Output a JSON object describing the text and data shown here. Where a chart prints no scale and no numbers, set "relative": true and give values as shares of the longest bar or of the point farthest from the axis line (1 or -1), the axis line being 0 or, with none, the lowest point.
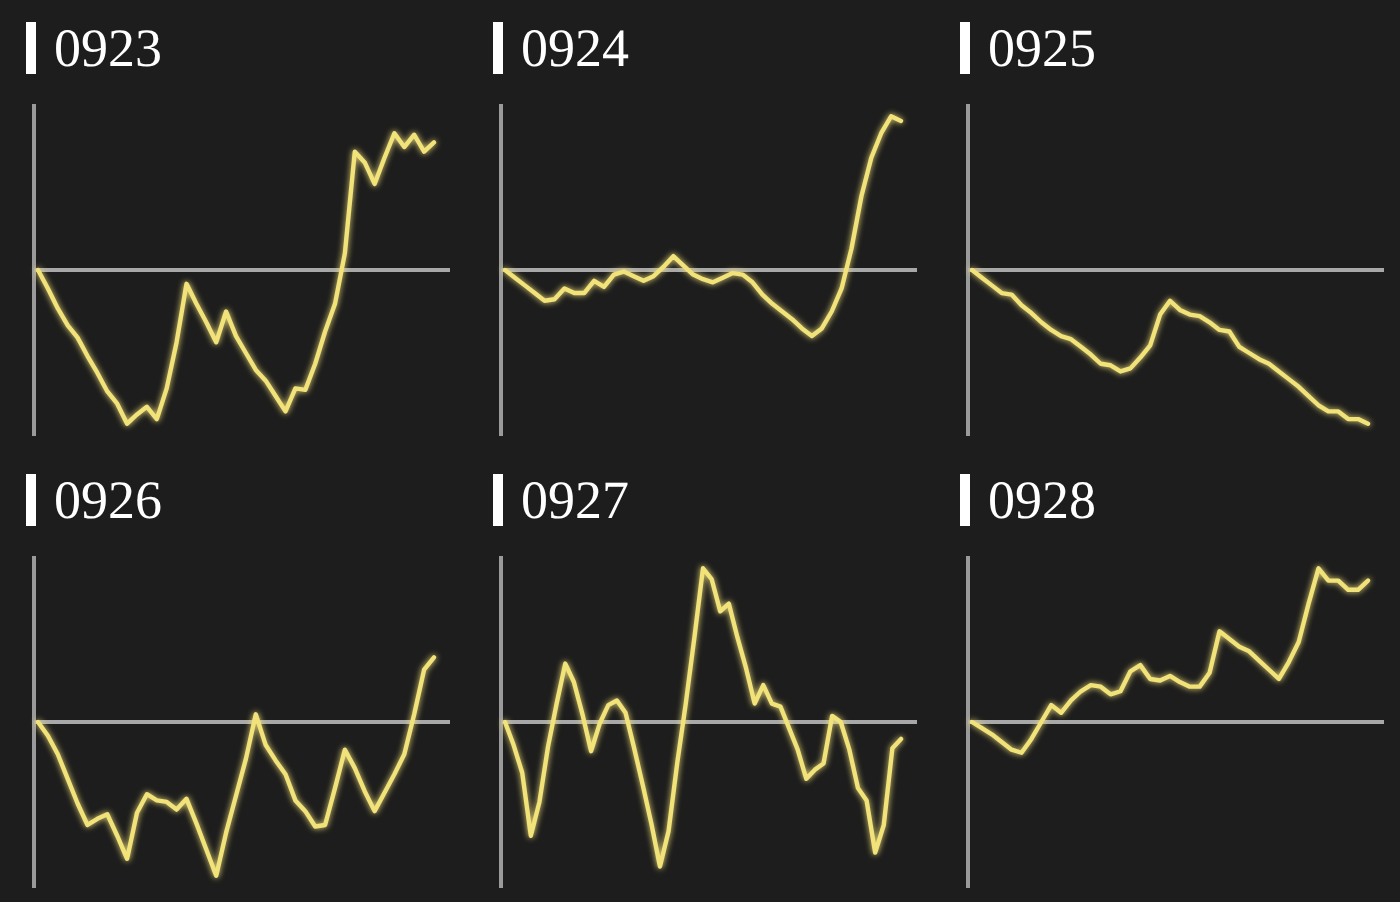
{
  "chart_data": [
    {
      "type": "line",
      "title": "0923",
      "relative": true,
      "color": "#f2e27a",
      "categories": [
        null,
        null,
        null,
        null,
        null,
        null,
        null,
        null,
        null,
        null,
        null,
        null,
        null,
        null,
        null,
        null,
        null,
        null,
        null,
        null,
        null,
        null,
        null,
        null,
        null,
        null,
        null,
        null,
        null,
        null,
        null,
        null,
        null,
        null,
        null,
        null,
        null,
        null,
        null,
        null,
        null
      ],
      "values": [
        0,
        -0.12,
        -0.25,
        -0.36,
        -0.44,
        -0.56,
        -0.67,
        -0.79,
        -0.87,
        -1.0,
        -0.94,
        -0.89,
        -0.97,
        -0.77,
        -0.47,
        -0.09,
        -0.22,
        -0.34,
        -0.47,
        -0.27,
        -0.43,
        -0.54,
        -0.65,
        -0.72,
        -0.82,
        -0.92,
        -0.77,
        -0.78,
        -0.61,
        -0.4,
        -0.22,
        0.11,
        0.77,
        0.7,
        0.56,
        0.73,
        0.89,
        0.8,
        0.88,
        0.77,
        0.83
      ]
    },
    {
      "type": "line",
      "title": "0924",
      "relative": true,
      "color": "#f2e27a",
      "categories": [
        null,
        null,
        null,
        null,
        null,
        null,
        null,
        null,
        null,
        null,
        null,
        null,
        null,
        null,
        null,
        null,
        null,
        null,
        null,
        null,
        null,
        null,
        null,
        null,
        null,
        null,
        null,
        null,
        null,
        null,
        null,
        null,
        null,
        null,
        null,
        null,
        null,
        null,
        null,
        null,
        null
      ],
      "values": [
        0,
        -0.05,
        -0.1,
        -0.15,
        -0.2,
        -0.19,
        -0.12,
        -0.15,
        -0.15,
        -0.07,
        -0.11,
        -0.03,
        -0.01,
        -0.04,
        -0.07,
        -0.04,
        0.02,
        0.09,
        0.03,
        -0.03,
        -0.06,
        -0.08,
        -0.05,
        -0.02,
        -0.03,
        -0.08,
        -0.16,
        -0.22,
        -0.27,
        -0.32,
        -0.38,
        -0.43,
        -0.38,
        -0.27,
        -0.12,
        0.14,
        0.48,
        0.73,
        0.89,
        1.0,
        0.97
      ]
    },
    {
      "type": "line",
      "title": "0925",
      "relative": true,
      "color": "#f2e27a",
      "categories": [
        null,
        null,
        null,
        null,
        null,
        null,
        null,
        null,
        null,
        null,
        null,
        null,
        null,
        null,
        null,
        null,
        null,
        null,
        null,
        null,
        null,
        null,
        null,
        null,
        null,
        null,
        null,
        null,
        null,
        null,
        null,
        null,
        null,
        null,
        null,
        null,
        null,
        null,
        null,
        null,
        null
      ],
      "values": [
        0,
        -0.05,
        -0.1,
        -0.15,
        -0.16,
        -0.23,
        -0.28,
        -0.34,
        -0.39,
        -0.43,
        -0.45,
        -0.5,
        -0.55,
        -0.61,
        -0.62,
        -0.66,
        -0.64,
        -0.57,
        -0.49,
        -0.29,
        -0.2,
        -0.26,
        -0.29,
        -0.3,
        -0.34,
        -0.39,
        -0.4,
        -0.5,
        -0.54,
        -0.58,
        -0.61,
        -0.66,
        -0.71,
        -0.76,
        -0.82,
        -0.88,
        -0.92,
        -0.92,
        -0.97,
        -0.97,
        -1.0
      ]
    },
    {
      "type": "line",
      "title": "0926",
      "relative": true,
      "color": "#f2e27a",
      "categories": [
        null,
        null,
        null,
        null,
        null,
        null,
        null,
        null,
        null,
        null,
        null,
        null,
        null,
        null,
        null,
        null,
        null,
        null,
        null,
        null,
        null,
        null,
        null,
        null,
        null,
        null,
        null,
        null,
        null,
        null,
        null,
        null,
        null,
        null,
        null,
        null,
        null,
        null,
        null,
        null,
        null
      ],
      "values": [
        0,
        -0.09,
        -0.21,
        -0.37,
        -0.53,
        -0.67,
        -0.63,
        -0.6,
        -0.74,
        -0.89,
        -0.59,
        -0.47,
        -0.51,
        -0.52,
        -0.57,
        -0.5,
        -0.66,
        -0.83,
        -1.0,
        -0.72,
        -0.48,
        -0.24,
        0.05,
        -0.15,
        -0.25,
        -0.34,
        -0.51,
        -0.58,
        -0.68,
        -0.67,
        -0.43,
        -0.18,
        -0.3,
        -0.45,
        -0.58,
        -0.46,
        -0.34,
        -0.21,
        0.05,
        0.34,
        0.42
      ]
    },
    {
      "type": "line",
      "title": "0927",
      "relative": true,
      "color": "#f2e27a",
      "categories": [
        null,
        null,
        null,
        null,
        null,
        null,
        null,
        null,
        null,
        null,
        null,
        null,
        null,
        null,
        null,
        null,
        null,
        null,
        null,
        null,
        null,
        null,
        null,
        null,
        null,
        null,
        null,
        null,
        null,
        null,
        null,
        null,
        null,
        null,
        null,
        null,
        null,
        null,
        null,
        null,
        null,
        null,
        null,
        null,
        null,
        null,
        null
      ],
      "values": [
        0,
        -0.15,
        -0.33,
        -0.74,
        -0.52,
        -0.16,
        0.12,
        0.38,
        0.26,
        0.05,
        -0.19,
        -0.01,
        0.11,
        0.14,
        0.06,
        -0.17,
        -0.41,
        -0.66,
        -0.94,
        -0.71,
        -0.27,
        0.12,
        0.55,
        1.0,
        0.93,
        0.72,
        0.77,
        0.55,
        0.35,
        0.12,
        0.24,
        0.12,
        0.1,
        -0.04,
        -0.18,
        -0.37,
        -0.31,
        -0.27,
        0.04,
        0,
        -0.18,
        -0.43,
        -0.51,
        -0.85,
        -0.67,
        -0.17,
        -0.11
      ]
    },
    {
      "type": "line",
      "title": "0928",
      "relative": true,
      "color": "#f2e27a",
      "categories": [
        null,
        null,
        null,
        null,
        null,
        null,
        null,
        null,
        null,
        null,
        null,
        null,
        null,
        null,
        null,
        null,
        null,
        null,
        null,
        null,
        null,
        null,
        null,
        null,
        null,
        null,
        null,
        null,
        null,
        null,
        null,
        null,
        null,
        null,
        null,
        null,
        null,
        null,
        null,
        null,
        null
      ],
      "values": [
        0,
        -0.04,
        -0.08,
        -0.13,
        -0.18,
        -0.2,
        -0.11,
        0,
        0.11,
        0.06,
        0.14,
        0.2,
        0.24,
        0.23,
        0.18,
        0.2,
        0.33,
        0.37,
        0.28,
        0.27,
        0.3,
        0.26,
        0.23,
        0.23,
        0.32,
        0.59,
        0.54,
        0.49,
        0.46,
        0.4,
        0.34,
        0.28,
        0.39,
        0.52,
        0.77,
        1.0,
        0.92,
        0.92,
        0.86,
        0.86,
        0.92
      ]
    }
  ]
}
